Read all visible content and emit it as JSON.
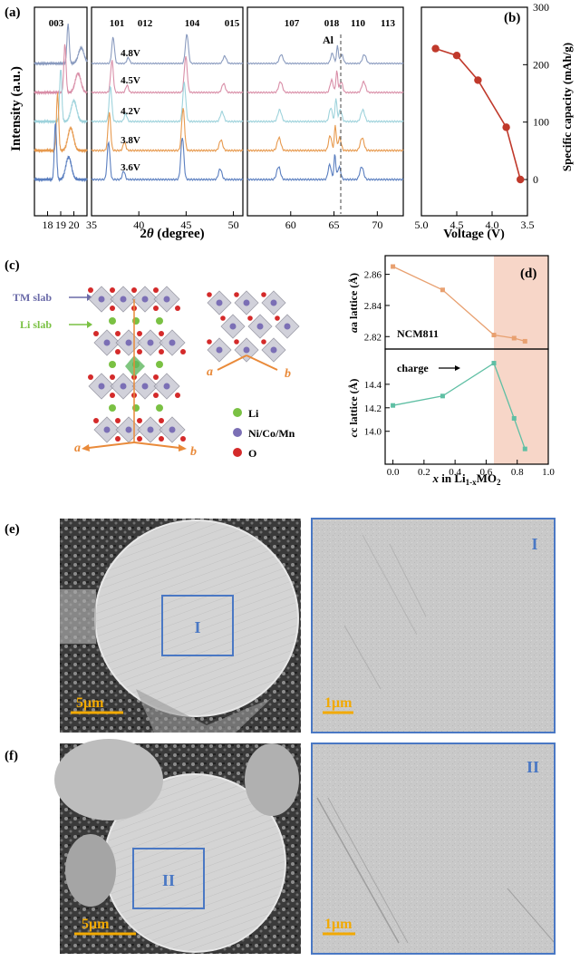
{
  "panel_a": {
    "label": "(a)",
    "ylabel": "Intensity (a.u.)",
    "xlabel_prefix": "2",
    "xlabel_theta": "θ",
    "xlabel_suffix": " (degree)",
    "al_label": "Al",
    "sub1": {
      "xmin": 17,
      "xmax": 21,
      "ticks": [
        18,
        19,
        20
      ],
      "tick_labels": [
        "18",
        "19",
        "20"
      ],
      "peaks": [
        "003"
      ]
    },
    "sub2": {
      "xmin": 35,
      "xmax": 51,
      "ticks": [
        35,
        40,
        45,
        50
      ],
      "tick_labels": [
        "35",
        "40",
        "45",
        "50"
      ],
      "peaks": [
        "101",
        "012",
        "104",
        "015"
      ]
    },
    "sub3": {
      "xmin": 55,
      "xmax": 73,
      "ticks": [
        60,
        65,
        70
      ],
      "tick_labels": [
        "60",
        "65",
        "70"
      ],
      "peaks": [
        "107",
        "018",
        "110",
        "113"
      ]
    },
    "curves": [
      {
        "voltage": "4.8V",
        "color": "#8a9bbf"
      },
      {
        "voltage": "4.5V",
        "color": "#d98fa8"
      },
      {
        "voltage": "4.2V",
        "color": "#9fd3dc"
      },
      {
        "voltage": "3.8V",
        "color": "#e79a4f"
      },
      {
        "voltage": "3.6V",
        "color": "#5b7fc0"
      }
    ]
  },
  "panel_b": {
    "label": "(b)",
    "xlabel": "Voltage (V)",
    "ylabel": "Specific capacity (mAh/g)",
    "color": "#c0392b",
    "chart_data": {
      "type": "line",
      "x": [
        4.8,
        4.5,
        4.2,
        3.8,
        3.6
      ],
      "y": [
        228,
        216,
        173,
        91,
        0
      ],
      "xlim": [
        5.0,
        3.5
      ],
      "ylim": [
        0,
        300
      ],
      "xticks": [
        "5.0",
        "4.5",
        "4.0",
        "3.5"
      ],
      "yticks": [
        "0",
        "100",
        "200",
        "300"
      ]
    }
  },
  "panel_c": {
    "label": "(c)",
    "tm_slab": "TM slab",
    "li_slab": "Li slab",
    "axis_a": "a",
    "axis_b": "b",
    "legend": [
      {
        "name": "Li",
        "color": "#7ac143"
      },
      {
        "name": "Ni/Co/Mn",
        "color": "#7b6fb5"
      },
      {
        "name": "O",
        "color": "#d42a2a"
      }
    ]
  },
  "panel_d": {
    "label": "(d)",
    "series_label": "NCM811",
    "charge_label": "charge",
    "xlabel_prefix": "x",
    "xlabel_mid": " in Li",
    "xlabel_sub": "1-x",
    "xlabel_suffix": "MO",
    "xlabel_sub2": "2",
    "ylabel_top": "a lattice (Å)",
    "ylabel_bottom": "c lattice (Å)",
    "chart_data": [
      {
        "type": "line",
        "x": [
          0.0,
          0.32,
          0.65,
          0.78,
          0.85
        ],
        "y": [
          2.865,
          2.85,
          2.821,
          2.819,
          2.817
        ],
        "ylim": [
          2.812,
          2.872
        ],
        "yticks": [
          "2.82",
          "2.84",
          "2.86"
        ],
        "color": "#e8a070"
      },
      {
        "type": "line",
        "x": [
          0.0,
          0.32,
          0.65,
          0.78,
          0.85
        ],
        "y": [
          14.22,
          14.3,
          14.58,
          14.11,
          13.85
        ],
        "ylim": [
          13.72,
          14.7
        ],
        "yticks": [
          "14.0",
          "14.2",
          "14.4"
        ],
        "xticks": [
          "0.0",
          "0.2",
          "0.4",
          "0.6",
          "0.8",
          "1.0"
        ],
        "xlim": [
          -0.05,
          1.0
        ],
        "color": "#5fbfa4",
        "shade_from": 0.65
      }
    ]
  },
  "panel_e": {
    "label": "(e)",
    "box": "I",
    "scale_left": "5μm",
    "scale_right": "1μm"
  },
  "panel_f": {
    "label": "(f)",
    "box": "II",
    "scale_left": "5μm",
    "scale_right": "1μm"
  },
  "colors": {
    "box_blue": "#4a78c4",
    "scale_gold": "#f2a900",
    "shade": "#f7d6c8"
  }
}
